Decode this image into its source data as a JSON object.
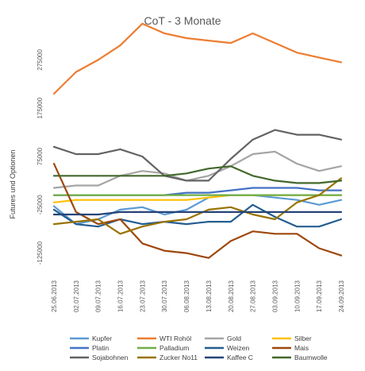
{
  "chart_data": {
    "type": "line",
    "title": "CoT - 3 Monate",
    "xlabel": "",
    "ylabel": "Futures und Optionen",
    "ylim": [
      -175000,
      325000
    ],
    "yticks": [
      -125000,
      -25000,
      75000,
      175000,
      275000
    ],
    "ytick_labels": [
      "-125000",
      "-25000",
      "75000",
      "175000",
      "275000"
    ],
    "grid": false,
    "legend_position": "bottom",
    "categories": [
      "25.06.2013",
      "02.07.2013",
      "09.07.2013",
      "16.07.2013",
      "23.07.2013",
      "30.07.2013",
      "06.08.2013",
      "13.08.2013",
      "20.08.2013",
      "27.08.2013",
      "03.09.2013",
      "10.09.2013",
      "17.09.2013",
      "24.09.2013"
    ],
    "series": [
      {
        "name": "Kupfer",
        "color": "#5b9bd5",
        "values": [
          -28000,
          -65000,
          -55000,
          -35000,
          -30000,
          -45000,
          -35000,
          -10000,
          -5000,
          -5000,
          -10000,
          -15000,
          -25000,
          -15000
        ]
      },
      {
        "name": "WTI Rohöl",
        "color": "#ed7d31",
        "values": [
          205000,
          250000,
          275000,
          305000,
          350000,
          330000,
          320000,
          315000,
          310000,
          330000,
          310000,
          290000,
          280000,
          270000
        ]
      },
      {
        "name": "Gold",
        "color": "#a5a5a5",
        "values": [
          10000,
          15000,
          15000,
          35000,
          45000,
          40000,
          25000,
          35000,
          55000,
          80000,
          85000,
          60000,
          45000,
          55000
        ]
      },
      {
        "name": "Silber",
        "color": "#ffc000",
        "values": [
          -20000,
          -15000,
          -15000,
          -15000,
          -15000,
          -15000,
          -15000,
          -10000,
          -5000,
          -5000,
          -5000,
          -5000,
          -5000,
          -5000
        ]
      },
      {
        "name": "Platin",
        "color": "#4472c4",
        "values": [
          -5000,
          -5000,
          -5000,
          -5000,
          -5000,
          -5000,
          0,
          0,
          5000,
          10000,
          10000,
          10000,
          5000,
          5000
        ]
      },
      {
        "name": "Palladium",
        "color": "#70ad47",
        "values": [
          -5000,
          -5000,
          -5000,
          -5000,
          -5000,
          -5000,
          -5000,
          -5000,
          -5000,
          -5000,
          -5000,
          -5000,
          -5000,
          -5000
        ]
      },
      {
        "name": "Weizen",
        "color": "#255e91",
        "values": [
          -35000,
          -65000,
          -70000,
          -55000,
          -65000,
          -60000,
          -65000,
          -60000,
          -60000,
          -25000,
          -50000,
          -70000,
          -70000,
          -55000
        ]
      },
      {
        "name": "Mais",
        "color": "#9e480e",
        "values": [
          60000,
          -40000,
          -65000,
          -55000,
          -105000,
          -120000,
          -125000,
          -135000,
          -100000,
          -80000,
          -85000,
          -85000,
          -115000,
          -130000
        ]
      },
      {
        "name": "Sojabohnen",
        "color": "#636363",
        "values": [
          95000,
          80000,
          80000,
          90000,
          75000,
          35000,
          25000,
          25000,
          70000,
          110000,
          130000,
          120000,
          120000,
          110000
        ]
      },
      {
        "name": "Zucker No11",
        "color": "#997300",
        "values": [
          -65000,
          -60000,
          -55000,
          -85000,
          -70000,
          -60000,
          -55000,
          -35000,
          -30000,
          -45000,
          -55000,
          -20000,
          -5000,
          30000
        ]
      },
      {
        "name": "Kaffee C",
        "color": "#264478",
        "values": [
          -45000,
          -45000,
          -45000,
          -40000,
          -40000,
          -40000,
          -40000,
          -40000,
          -40000,
          -40000,
          -40000,
          -40000,
          -40000,
          -40000
        ]
      },
      {
        "name": "Baumwolle",
        "color": "#43682b",
        "values": [
          35000,
          35000,
          35000,
          35000,
          35000,
          35000,
          40000,
          50000,
          55000,
          35000,
          25000,
          20000,
          20000,
          25000
        ]
      }
    ]
  }
}
